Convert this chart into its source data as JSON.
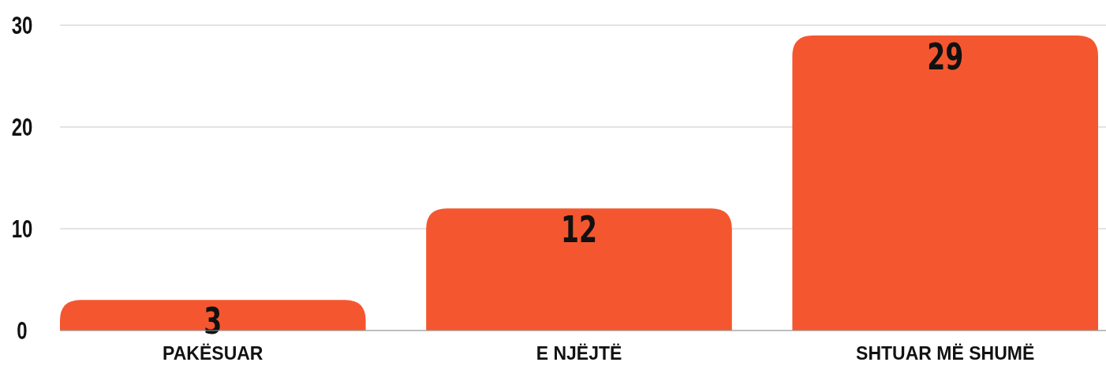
{
  "chart_data": {
    "type": "bar",
    "categories": [
      "PAKËSUAR",
      "E NJËJTË",
      "SHTUAR MË SHUMË"
    ],
    "values": [
      3,
      12,
      29
    ],
    "color": "#f4572f",
    "ylim": [
      0,
      30
    ],
    "yticks": [
      0,
      10,
      20,
      30
    ],
    "grid": "y",
    "data_labels": true
  }
}
